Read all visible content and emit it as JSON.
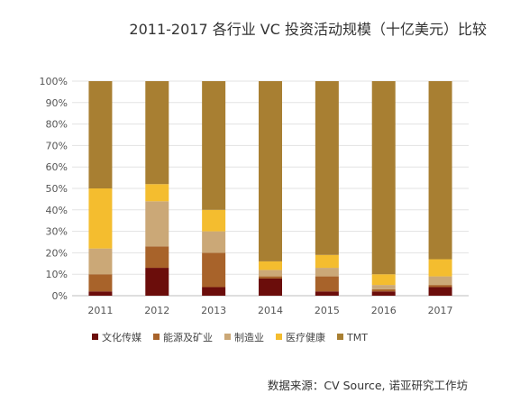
{
  "chart_data": {
    "type": "bar",
    "stacked": true,
    "title": "2011-2017 各行业 VC 投资活动规模（十亿美元）比较",
    "xlabel": "",
    "ylabel": "",
    "categories": [
      "2011",
      "2012",
      "2013",
      "2014",
      "2015",
      "2016",
      "2017"
    ],
    "ylim": [
      0,
      100
    ],
    "yticks": [
      "0%",
      "10%",
      "20%",
      "30%",
      "40%",
      "50%",
      "60%",
      "70%",
      "80%",
      "90%",
      "100%"
    ],
    "grid": true,
    "legend_position": "bottom",
    "series": [
      {
        "name": "文化传媒",
        "color": "#6b0d0b",
        "values": [
          2,
          13,
          4,
          8,
          2,
          2,
          4
        ]
      },
      {
        "name": "能源及矿业",
        "color": "#a8632a",
        "values": [
          8,
          10,
          16,
          1,
          7,
          1,
          1
        ]
      },
      {
        "name": "制造业",
        "color": "#cba877",
        "values": [
          12,
          21,
          10,
          3,
          4,
          2,
          4
        ]
      },
      {
        "name": "医疗健康",
        "color": "#f4bd2f",
        "values": [
          28,
          8,
          10,
          4,
          6,
          5,
          8
        ]
      },
      {
        "name": "TMT",
        "color": "#a87f32",
        "values": [
          50,
          48,
          60,
          84,
          81,
          90,
          83
        ]
      }
    ],
    "source": "数据来源：CV Source, 诺亚研究工作坊"
  }
}
